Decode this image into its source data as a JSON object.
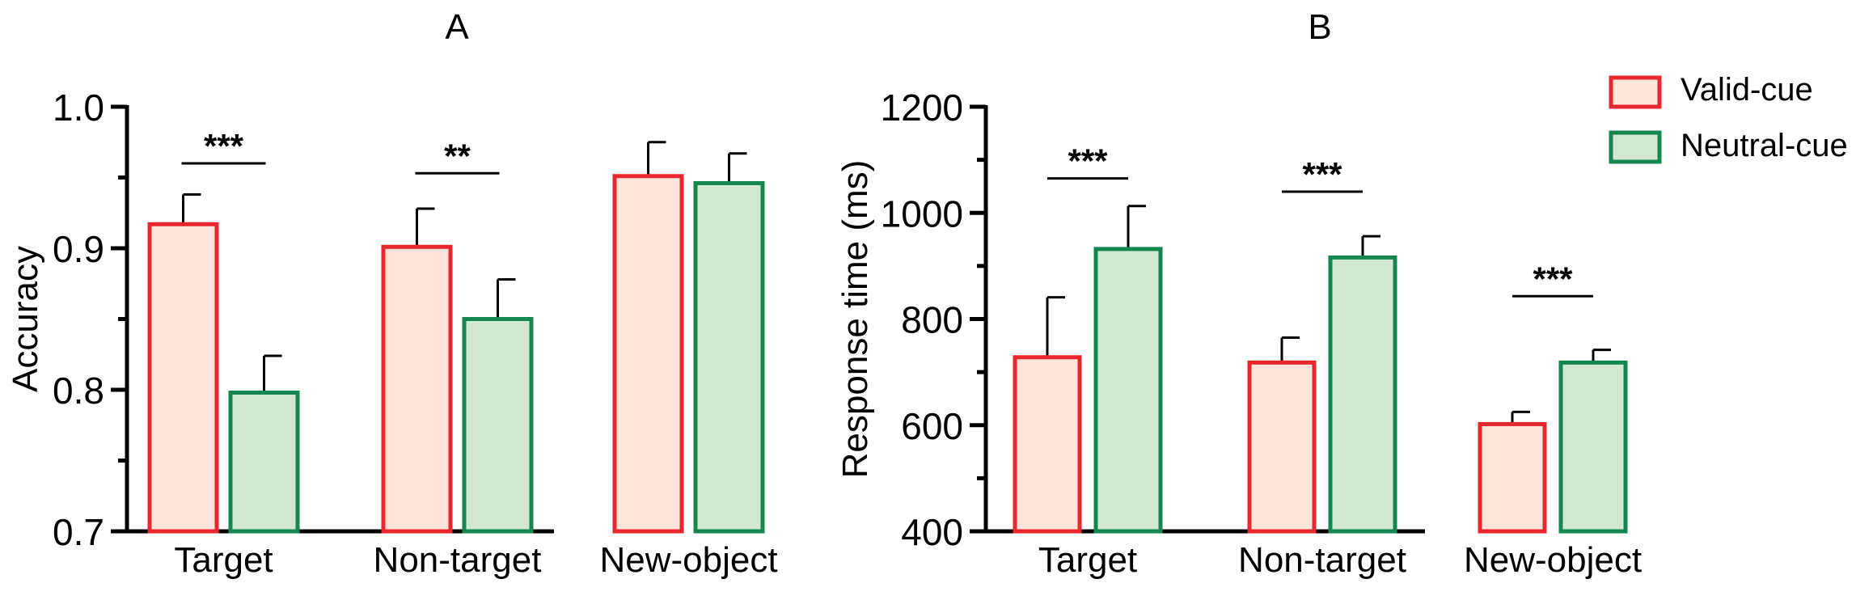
{
  "legend": {
    "valid_label": "Valid-cue",
    "neutral_label": "Neutral-cue"
  },
  "colors": {
    "valid_stroke": "#e8262d",
    "valid_fill": "#fce4da",
    "neutral_stroke": "#14864f",
    "neutral_fill": "#d3e8d4"
  },
  "chart_data": [
    {
      "type": "bar",
      "panel": "A",
      "title": "A",
      "xlabel": "",
      "ylabel": "Accuracy",
      "ylim": [
        0.7,
        1.0
      ],
      "yticks": [
        "0.7",
        "0.8",
        "0.9",
        "1.0"
      ],
      "ytick_values": [
        0.7,
        0.8,
        0.9,
        1.0
      ],
      "categories": [
        "Target",
        "Non-target",
        "New-object"
      ],
      "series": [
        {
          "name": "Valid-cue",
          "values": [
            0.917,
            0.901,
            0.951
          ],
          "errors": [
            0.021,
            0.027,
            0.024
          ]
        },
        {
          "name": "Neutral-cue",
          "values": [
            0.798,
            0.85,
            0.946
          ],
          "errors": [
            0.026,
            0.028,
            0.021
          ]
        }
      ],
      "significance": [
        {
          "category": "Target",
          "label": "***",
          "y": 0.96
        },
        {
          "category": "Non-target",
          "label": "**",
          "y": 0.953
        }
      ]
    },
    {
      "type": "bar",
      "panel": "B",
      "title": "B",
      "xlabel": "",
      "ylabel": "Response time  (ms)",
      "ylim": [
        400,
        1200
      ],
      "yticks": [
        "400",
        "600",
        "800",
        "1000",
        "1200"
      ],
      "ytick_values": [
        400,
        600,
        800,
        1000,
        1200
      ],
      "categories": [
        "Target",
        "Non-target",
        "New-object"
      ],
      "series": [
        {
          "name": "Valid-cue",
          "values": [
            728,
            718,
            602
          ],
          "errors": [
            113,
            47,
            23
          ]
        },
        {
          "name": "Neutral-cue",
          "values": [
            932,
            916,
            718
          ],
          "errors": [
            81,
            40,
            24
          ]
        }
      ],
      "significance": [
        {
          "category": "Target",
          "label": "***",
          "y": 1065
        },
        {
          "category": "Non-target",
          "label": "***",
          "y": 1040
        },
        {
          "category": "New-object",
          "label": "***",
          "y": 843
        }
      ]
    }
  ]
}
